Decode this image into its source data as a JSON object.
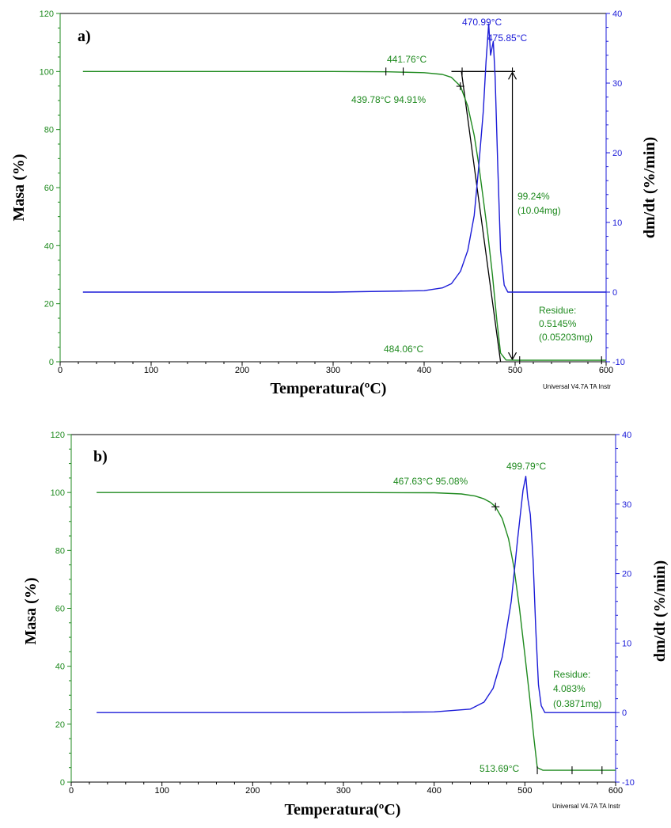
{
  "chart_data": [
    {
      "type": "line",
      "panel_label": "a)",
      "xlabel": "Temperatura(ºC)",
      "ylabel_left": "Masa (%)",
      "ylabel_right": "dm/dt (%/min)",
      "xlim": [
        0,
        600
      ],
      "ylim_left": [
        0,
        120
      ],
      "ylim_right": [
        -10,
        40
      ],
      "x_ticks": [
        "0",
        "100",
        "200",
        "300",
        "400",
        "500",
        "600"
      ],
      "y_left_ticks": [
        "0",
        "20",
        "40",
        "60",
        "80",
        "100",
        "120"
      ],
      "y_right_ticks": [
        "-10",
        "0",
        "10",
        "20",
        "30",
        "40"
      ],
      "grid": false,
      "footer": "Universal V4.7A TA Instr",
      "colors": {
        "mass": "#1f8a1f",
        "derivative": "#1c1cd8",
        "construction": "#000000"
      },
      "series": [
        {
          "axis": "left",
          "x": [
            25,
            100,
            200,
            300,
            360,
            400,
            420,
            430,
            440,
            448,
            455,
            460,
            465,
            470,
            475,
            480,
            484,
            490,
            500,
            550,
            600
          ],
          "values": [
            100,
            100,
            100,
            100,
            99.9,
            99.6,
            99.0,
            98.0,
            94.9,
            88,
            78,
            68,
            56,
            44,
            30,
            14,
            3,
            0.6,
            0.52,
            0.51,
            0.51
          ]
        },
        {
          "axis": "right",
          "x": [
            25,
            100,
            200,
            300,
            400,
            420,
            430,
            440,
            448,
            455,
            460,
            465,
            468,
            471,
            473,
            476,
            478,
            481,
            484,
            488,
            492,
            600
          ],
          "values": [
            0,
            0,
            0,
            0,
            0.2,
            0.6,
            1.2,
            3,
            6,
            11,
            18,
            26,
            33,
            38.5,
            34,
            36,
            31,
            18,
            6,
            1,
            0,
            0
          ]
        }
      ],
      "annotations": [
        {
          "text": "470.99°C",
          "x": 471,
          "y": 38.5,
          "axis": "right",
          "color": "derivative"
        },
        {
          "text": "475.85°C",
          "x": 476,
          "y": 36,
          "axis": "right",
          "color": "derivative"
        },
        {
          "text": "441.76°C",
          "x": 441.76,
          "y": 100,
          "axis": "left",
          "color": "mass"
        },
        {
          "text": "439.78°C 94.91%",
          "x": 439.78,
          "y": 94.91,
          "axis": "left",
          "color": "mass"
        },
        {
          "text": "99.24%",
          "axis": "left",
          "color": "mass"
        },
        {
          "text": "(10.04mg)",
          "axis": "left",
          "color": "mass"
        },
        {
          "text": "Residue:",
          "axis": "left",
          "color": "mass"
        },
        {
          "text": "0.5145%",
          "axis": "left",
          "color": "mass"
        },
        {
          "text": "(0.05203mg)",
          "axis": "left",
          "color": "mass"
        },
        {
          "text": "484.06°C",
          "x": 484.06,
          "y": 0.6,
          "axis": "left",
          "color": "mass"
        }
      ],
      "markers": [
        {
          "shape": "tick",
          "x": 358,
          "y": 100
        },
        {
          "shape": "tick",
          "x": 377,
          "y": 100
        },
        {
          "shape": "tick",
          "x": 441.76,
          "y": 100
        },
        {
          "shape": "cross",
          "x": 439.78,
          "y": 94.91
        },
        {
          "shape": "tick",
          "x": 497,
          "y": 100
        },
        {
          "shape": "tick",
          "x": 505,
          "y": 0.52
        },
        {
          "shape": "tick",
          "x": 595,
          "y": 0.52
        }
      ],
      "construction_lines": [
        {
          "x": [
            430,
            500
          ],
          "values": [
            100,
            100
          ]
        },
        {
          "x": [
            441,
            484
          ],
          "values": [
            100,
            0
          ]
        }
      ],
      "step_arrow": {
        "x": 497,
        "from": 100,
        "to": 0.5
      }
    },
    {
      "type": "line",
      "panel_label": "b)",
      "xlabel": "Temperatura(ºC)",
      "ylabel_left": "Masa (%)",
      "ylabel_right": "dm/dt (%/min)",
      "xlim": [
        0,
        600
      ],
      "ylim_left": [
        0,
        120
      ],
      "ylim_right": [
        -10,
        40
      ],
      "x_ticks": [
        "0",
        "100",
        "200",
        "300",
        "400",
        "500",
        "600"
      ],
      "y_left_ticks": [
        "0",
        "20",
        "40",
        "60",
        "80",
        "100",
        "120"
      ],
      "y_right_ticks": [
        "-10",
        "0",
        "10",
        "20",
        "30",
        "40"
      ],
      "grid": false,
      "footer": "Universal V4.7A TA Instr",
      "colors": {
        "mass": "#1f8a1f",
        "derivative": "#1c1cd8",
        "construction": "#000000"
      },
      "series": [
        {
          "axis": "left",
          "x": [
            28,
            100,
            200,
            300,
            400,
            430,
            445,
            455,
            462,
            467.6,
            475,
            482,
            488,
            494,
            500,
            505,
            510,
            513.7,
            520,
            560,
            600
          ],
          "values": [
            100,
            100,
            100,
            100,
            99.9,
            99.5,
            98.8,
            97.8,
            96.6,
            95.08,
            91,
            84,
            74,
            60,
            44,
            30,
            15,
            5,
            4.08,
            4.08,
            4.08
          ]
        },
        {
          "axis": "right",
          "x": [
            28,
            100,
            200,
            300,
            400,
            440,
            455,
            465,
            475,
            485,
            492,
            498,
            501,
            503,
            506,
            509,
            512,
            515,
            518,
            522,
            600
          ],
          "values": [
            0,
            0,
            0,
            0,
            0.1,
            0.5,
            1.5,
            3.5,
            8,
            16,
            25,
            32,
            34,
            31,
            28.5,
            22,
            12,
            4,
            1,
            0,
            0
          ]
        }
      ],
      "annotations": [
        {
          "text": "499.79°C",
          "x": 499.79,
          "y": 34,
          "axis": "right",
          "color": "mass"
        },
        {
          "text": "467.63°C 95.08%",
          "x": 467.63,
          "y": 95.08,
          "axis": "left",
          "color": "mass"
        },
        {
          "text": "Residue:",
          "axis": "left",
          "color": "mass"
        },
        {
          "text": "4.083%",
          "axis": "left",
          "color": "mass"
        },
        {
          "text": "(0.3871mg)",
          "axis": "left",
          "color": "mass"
        },
        {
          "text": "513.69°C",
          "x": 513.69,
          "y": 4.08,
          "axis": "left",
          "color": "mass"
        }
      ],
      "markers": [
        {
          "shape": "cross",
          "x": 467.63,
          "y": 95.08
        },
        {
          "shape": "tick",
          "x": 513.69,
          "y": 4.08
        },
        {
          "shape": "tick",
          "x": 552,
          "y": 4.08
        },
        {
          "shape": "tick",
          "x": 585,
          "y": 4.08
        }
      ],
      "construction_lines": [],
      "step_arrow": null
    }
  ]
}
